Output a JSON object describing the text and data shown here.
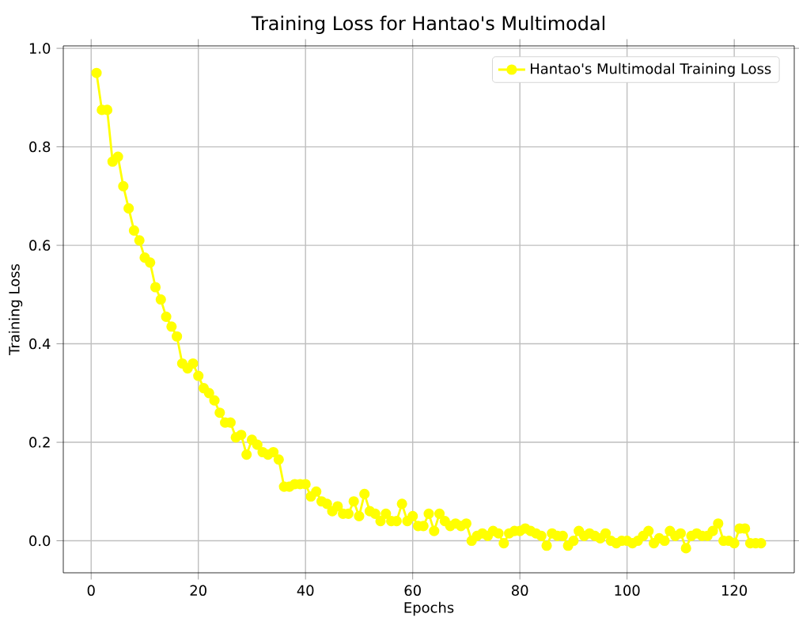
{
  "chart_data": {
    "type": "line",
    "title": "Training Loss for Hantao's Multimodal",
    "xlabel": "Epochs",
    "ylabel": "Training Loss",
    "x": [
      1,
      2,
      3,
      4,
      5,
      6,
      7,
      8,
      9,
      10,
      11,
      12,
      13,
      14,
      15,
      16,
      17,
      18,
      19,
      20,
      21,
      22,
      23,
      24,
      25,
      26,
      27,
      28,
      29,
      30,
      31,
      32,
      33,
      34,
      35,
      36,
      37,
      38,
      39,
      40,
      41,
      42,
      43,
      44,
      45,
      46,
      47,
      48,
      49,
      50,
      51,
      52,
      53,
      54,
      55,
      56,
      57,
      58,
      59,
      60,
      61,
      62,
      63,
      64,
      65,
      66,
      67,
      68,
      69,
      70,
      71,
      72,
      73,
      74,
      75,
      76,
      77,
      78,
      79,
      80,
      81,
      82,
      83,
      84,
      85,
      86,
      87,
      88,
      89,
      90,
      91,
      92,
      93,
      94,
      95,
      96,
      97,
      98,
      99,
      100,
      101,
      102,
      103,
      104,
      105,
      106,
      107,
      108,
      109,
      110,
      111,
      112,
      113,
      114,
      115,
      116,
      117,
      118,
      119,
      120,
      121,
      122,
      123,
      124,
      125
    ],
    "series": [
      {
        "name": "Hantao's Multimodal Training Loss",
        "color": "#ffff00",
        "values": [
          0.95,
          0.875,
          0.875,
          0.77,
          0.78,
          0.72,
          0.675,
          0.63,
          0.61,
          0.575,
          0.565,
          0.515,
          0.49,
          0.455,
          0.435,
          0.415,
          0.36,
          0.35,
          0.36,
          0.335,
          0.31,
          0.3,
          0.285,
          0.26,
          0.24,
          0.24,
          0.21,
          0.215,
          0.175,
          0.205,
          0.195,
          0.18,
          0.175,
          0.18,
          0.165,
          0.11,
          0.11,
          0.115,
          0.115,
          0.115,
          0.09,
          0.1,
          0.08,
          0.075,
          0.06,
          0.07,
          0.055,
          0.055,
          0.08,
          0.05,
          0.095,
          0.06,
          0.055,
          0.04,
          0.055,
          0.04,
          0.04,
          0.075,
          0.04,
          0.05,
          0.03,
          0.03,
          0.055,
          0.02,
          0.055,
          0.04,
          0.03,
          0.035,
          0.03,
          0.035,
          0.0,
          0.01,
          0.015,
          0.01,
          0.02,
          0.015,
          -0.005,
          0.015,
          0.02,
          0.02,
          0.025,
          0.02,
          0.015,
          0.01,
          -0.01,
          0.015,
          0.01,
          0.01,
          -0.01,
          0.0,
          0.02,
          0.01,
          0.015,
          0.01,
          0.005,
          0.015,
          0.0,
          -0.005,
          0.0,
          0.0,
          -0.005,
          0.0,
          0.01,
          0.02,
          -0.005,
          0.005,
          0.0,
          0.02,
          0.01,
          0.015,
          -0.015,
          0.01,
          0.015,
          0.01,
          0.01,
          0.02,
          0.035,
          0.0,
          0.0,
          -0.005,
          0.025,
          0.025,
          -0.005,
          -0.005,
          -0.005
        ]
      }
    ],
    "xlim": [
      -5.2,
      131.2
    ],
    "ylim": [
      -0.065,
      1.005
    ],
    "xticks": [
      0,
      20,
      40,
      60,
      80,
      100,
      120
    ],
    "yticks": [
      {
        "value": 0.0,
        "label": "0.0"
      },
      0.2,
      0.4,
      0.6,
      0.8,
      {
        "value": 1.0,
        "label": "1.0"
      }
    ],
    "grid": true,
    "legend": "top right",
    "marker": "circle",
    "line_style": "solid"
  }
}
